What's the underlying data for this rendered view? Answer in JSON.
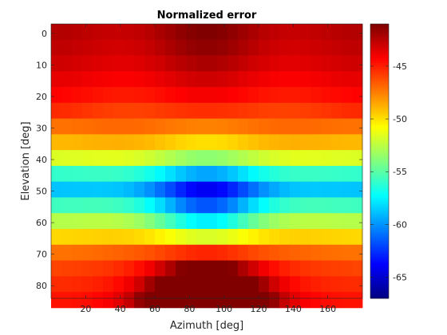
{
  "chart_data": {
    "type": "heatmap",
    "title": "Normalized error",
    "xlabel": "Azimuth [deg]",
    "ylabel": "Elevation [deg]",
    "colormap": "jet",
    "x": {
      "start": 0,
      "step": 6,
      "count": 30,
      "range": [
        0,
        180
      ],
      "ticks": [
        20,
        40,
        60,
        80,
        100,
        120,
        140,
        160
      ]
    },
    "y": {
      "start": -3,
      "step": 5,
      "count": 18,
      "range": [
        -3,
        84
      ],
      "ticks": [
        0,
        10,
        20,
        30,
        40,
        50,
        60,
        70,
        80
      ],
      "reversed": true
    },
    "colorbar": {
      "min": -67,
      "max": -41,
      "ticks": [
        -45,
        -50,
        -55,
        -60,
        -65
      ]
    },
    "row_levels": [
      -42.6,
      -42.9,
      -43.3,
      -43.9,
      -44.6,
      -45.6,
      -47.0,
      -48.8,
      -51.5,
      -55.8,
      -58.6,
      -55.5,
      -52.5,
      -49.6,
      -47.0,
      -45.8,
      -45.2,
      -44.6
    ],
    "row_peaks": [
      -1.3,
      -1.2,
      -0.9,
      -0.6,
      -0.3,
      0.1,
      0.4,
      1.0,
      2.0,
      3.6,
      5.3,
      6.0,
      5.0,
      2.0,
      -2.0,
      -6.0,
      -11.0,
      -16.0
    ]
  }
}
